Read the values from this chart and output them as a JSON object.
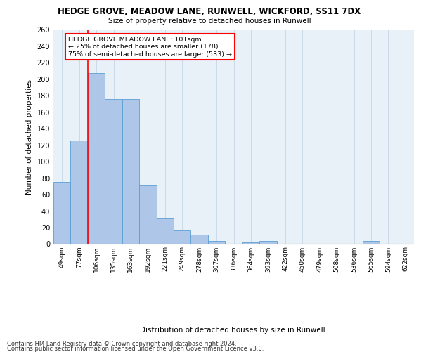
{
  "title_line1": "HEDGE GROVE, MEADOW LANE, RUNWELL, WICKFORD, SS11 7DX",
  "title_line2": "Size of property relative to detached houses in Runwell",
  "xlabel": "Distribution of detached houses by size in Runwell",
  "ylabel": "Number of detached properties",
  "categories": [
    "49sqm",
    "77sqm",
    "106sqm",
    "135sqm",
    "163sqm",
    "192sqm",
    "221sqm",
    "249sqm",
    "278sqm",
    "307sqm",
    "336sqm",
    "364sqm",
    "393sqm",
    "422sqm",
    "450sqm",
    "479sqm",
    "508sqm",
    "536sqm",
    "565sqm",
    "594sqm",
    "622sqm"
  ],
  "values": [
    75,
    125,
    207,
    176,
    176,
    71,
    31,
    16,
    11,
    3,
    0,
    2,
    3,
    0,
    0,
    0,
    0,
    0,
    3,
    0,
    0
  ],
  "bar_color": "#aec6e8",
  "bar_edge_color": "#5a9fd4",
  "red_line_x": 1.5,
  "annotation_text": "HEDGE GROVE MEADOW LANE: 101sqm\n← 25% of detached houses are smaller (178)\n75% of semi-detached houses are larger (533) →",
  "annotation_box_color": "white",
  "annotation_box_edge_color": "red",
  "red_line_color": "red",
  "grid_color": "#ccd9e8",
  "background_color": "#e8f0f8",
  "footer_line1": "Contains HM Land Registry data © Crown copyright and database right 2024.",
  "footer_line2": "Contains public sector information licensed under the Open Government Licence v3.0.",
  "ylim": [
    0,
    260
  ],
  "yticks": [
    0,
    20,
    40,
    60,
    80,
    100,
    120,
    140,
    160,
    180,
    200,
    220,
    240,
    260
  ]
}
